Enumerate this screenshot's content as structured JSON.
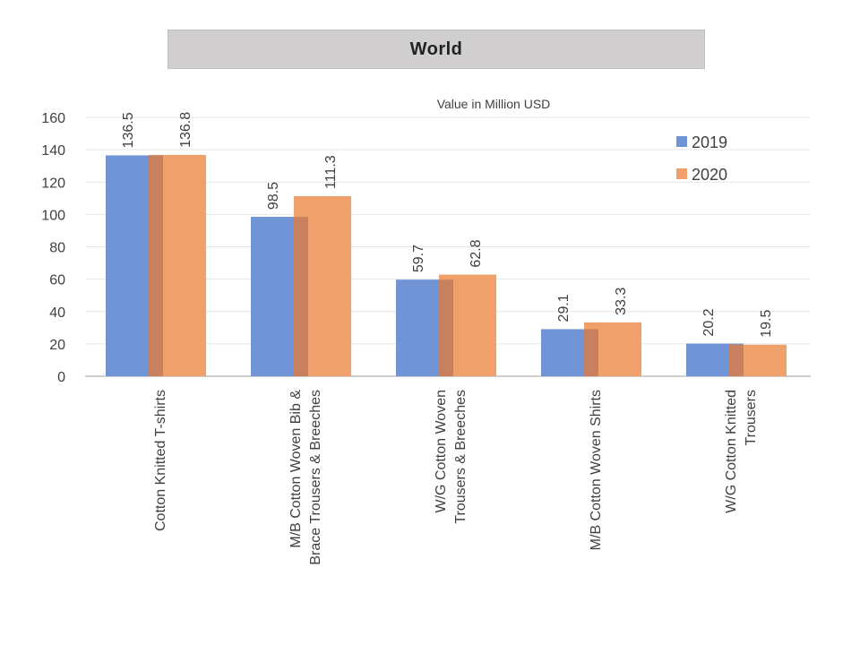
{
  "header": {
    "title": "World"
  },
  "chart_data": {
    "type": "bar",
    "title": "World",
    "subtitle": "Value in Million USD",
    "xlabel": "",
    "ylabel": "",
    "ylim": [
      0,
      160
    ],
    "yticks": [
      0,
      20,
      40,
      60,
      80,
      100,
      120,
      140,
      160
    ],
    "grid": true,
    "legend_position": "top-right",
    "categories": [
      [
        "Cotton Knitted  T-shirts"
      ],
      [
        "M/B Cotton Woven Bib &",
        "Brace Trousers & Breeches"
      ],
      [
        "W/G Cotton Woven",
        "Trousers & Breeches"
      ],
      [
        "M/B Cotton Woven  Shirts"
      ],
      [
        "W/G Cotton Knitted",
        "Trousers"
      ]
    ],
    "series": [
      {
        "name": "2019",
        "color": "#7194d6",
        "values": [
          136.5,
          98.5,
          59.7,
          29.1,
          20.2
        ],
        "labels": [
          "136.5",
          "98.5",
          "59.7",
          "29.1",
          "20.2"
        ]
      },
      {
        "name": "2020",
        "color": "#f0a06a",
        "values": [
          136.8,
          111.3,
          62.8,
          33.3,
          19.5
        ],
        "labels": [
          "136.8",
          "111.3",
          "62.8",
          "33.3",
          "19.5"
        ]
      }
    ],
    "overlap_color": "#c8805e"
  }
}
